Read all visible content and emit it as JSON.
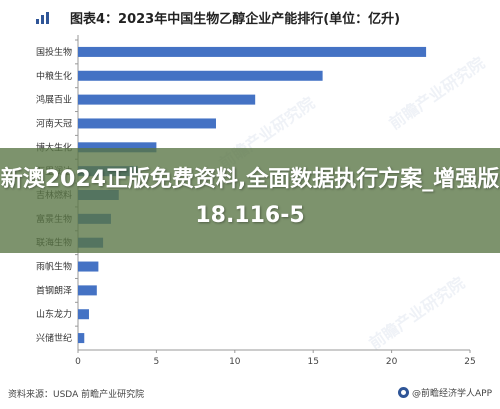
{
  "header": {
    "title": "图表4：2023年中国生物乙醇企业产能排行(单位：亿升)"
  },
  "chart_data": {
    "type": "bar",
    "orientation": "horizontal",
    "title": "图表4：2023年中国生物乙醇企业产能排行(单位：亿升)",
    "categories": [
      "国投生物",
      "中粮生化",
      "鸿展百业",
      "河南天冠",
      "博大生化",
      "万里润达",
      "吉林燃料",
      "富景生物",
      "联海生物",
      "雨帆生物",
      "首钢朗泽",
      "山东龙力",
      "兴储世纪"
    ],
    "values": [
      22.2,
      15.6,
      11.3,
      8.8,
      5.0,
      3.8,
      2.6,
      2.1,
      1.6,
      1.3,
      1.2,
      0.7,
      0.4
    ],
    "xticks": [
      0,
      5,
      10,
      15,
      20,
      25
    ],
    "xlim": [
      0,
      25
    ],
    "grid": false,
    "bar_color": "#4472c4"
  },
  "overlay": {
    "text": "新澳2024正版免费资料,全面数据执行方案_增强版18.116-5"
  },
  "footer": {
    "source": "资料来源：USDA 前瞻产业研究院",
    "brand": "@前瞻经济学人APP"
  },
  "watermark": {
    "text": "前瞻产业研究院"
  }
}
